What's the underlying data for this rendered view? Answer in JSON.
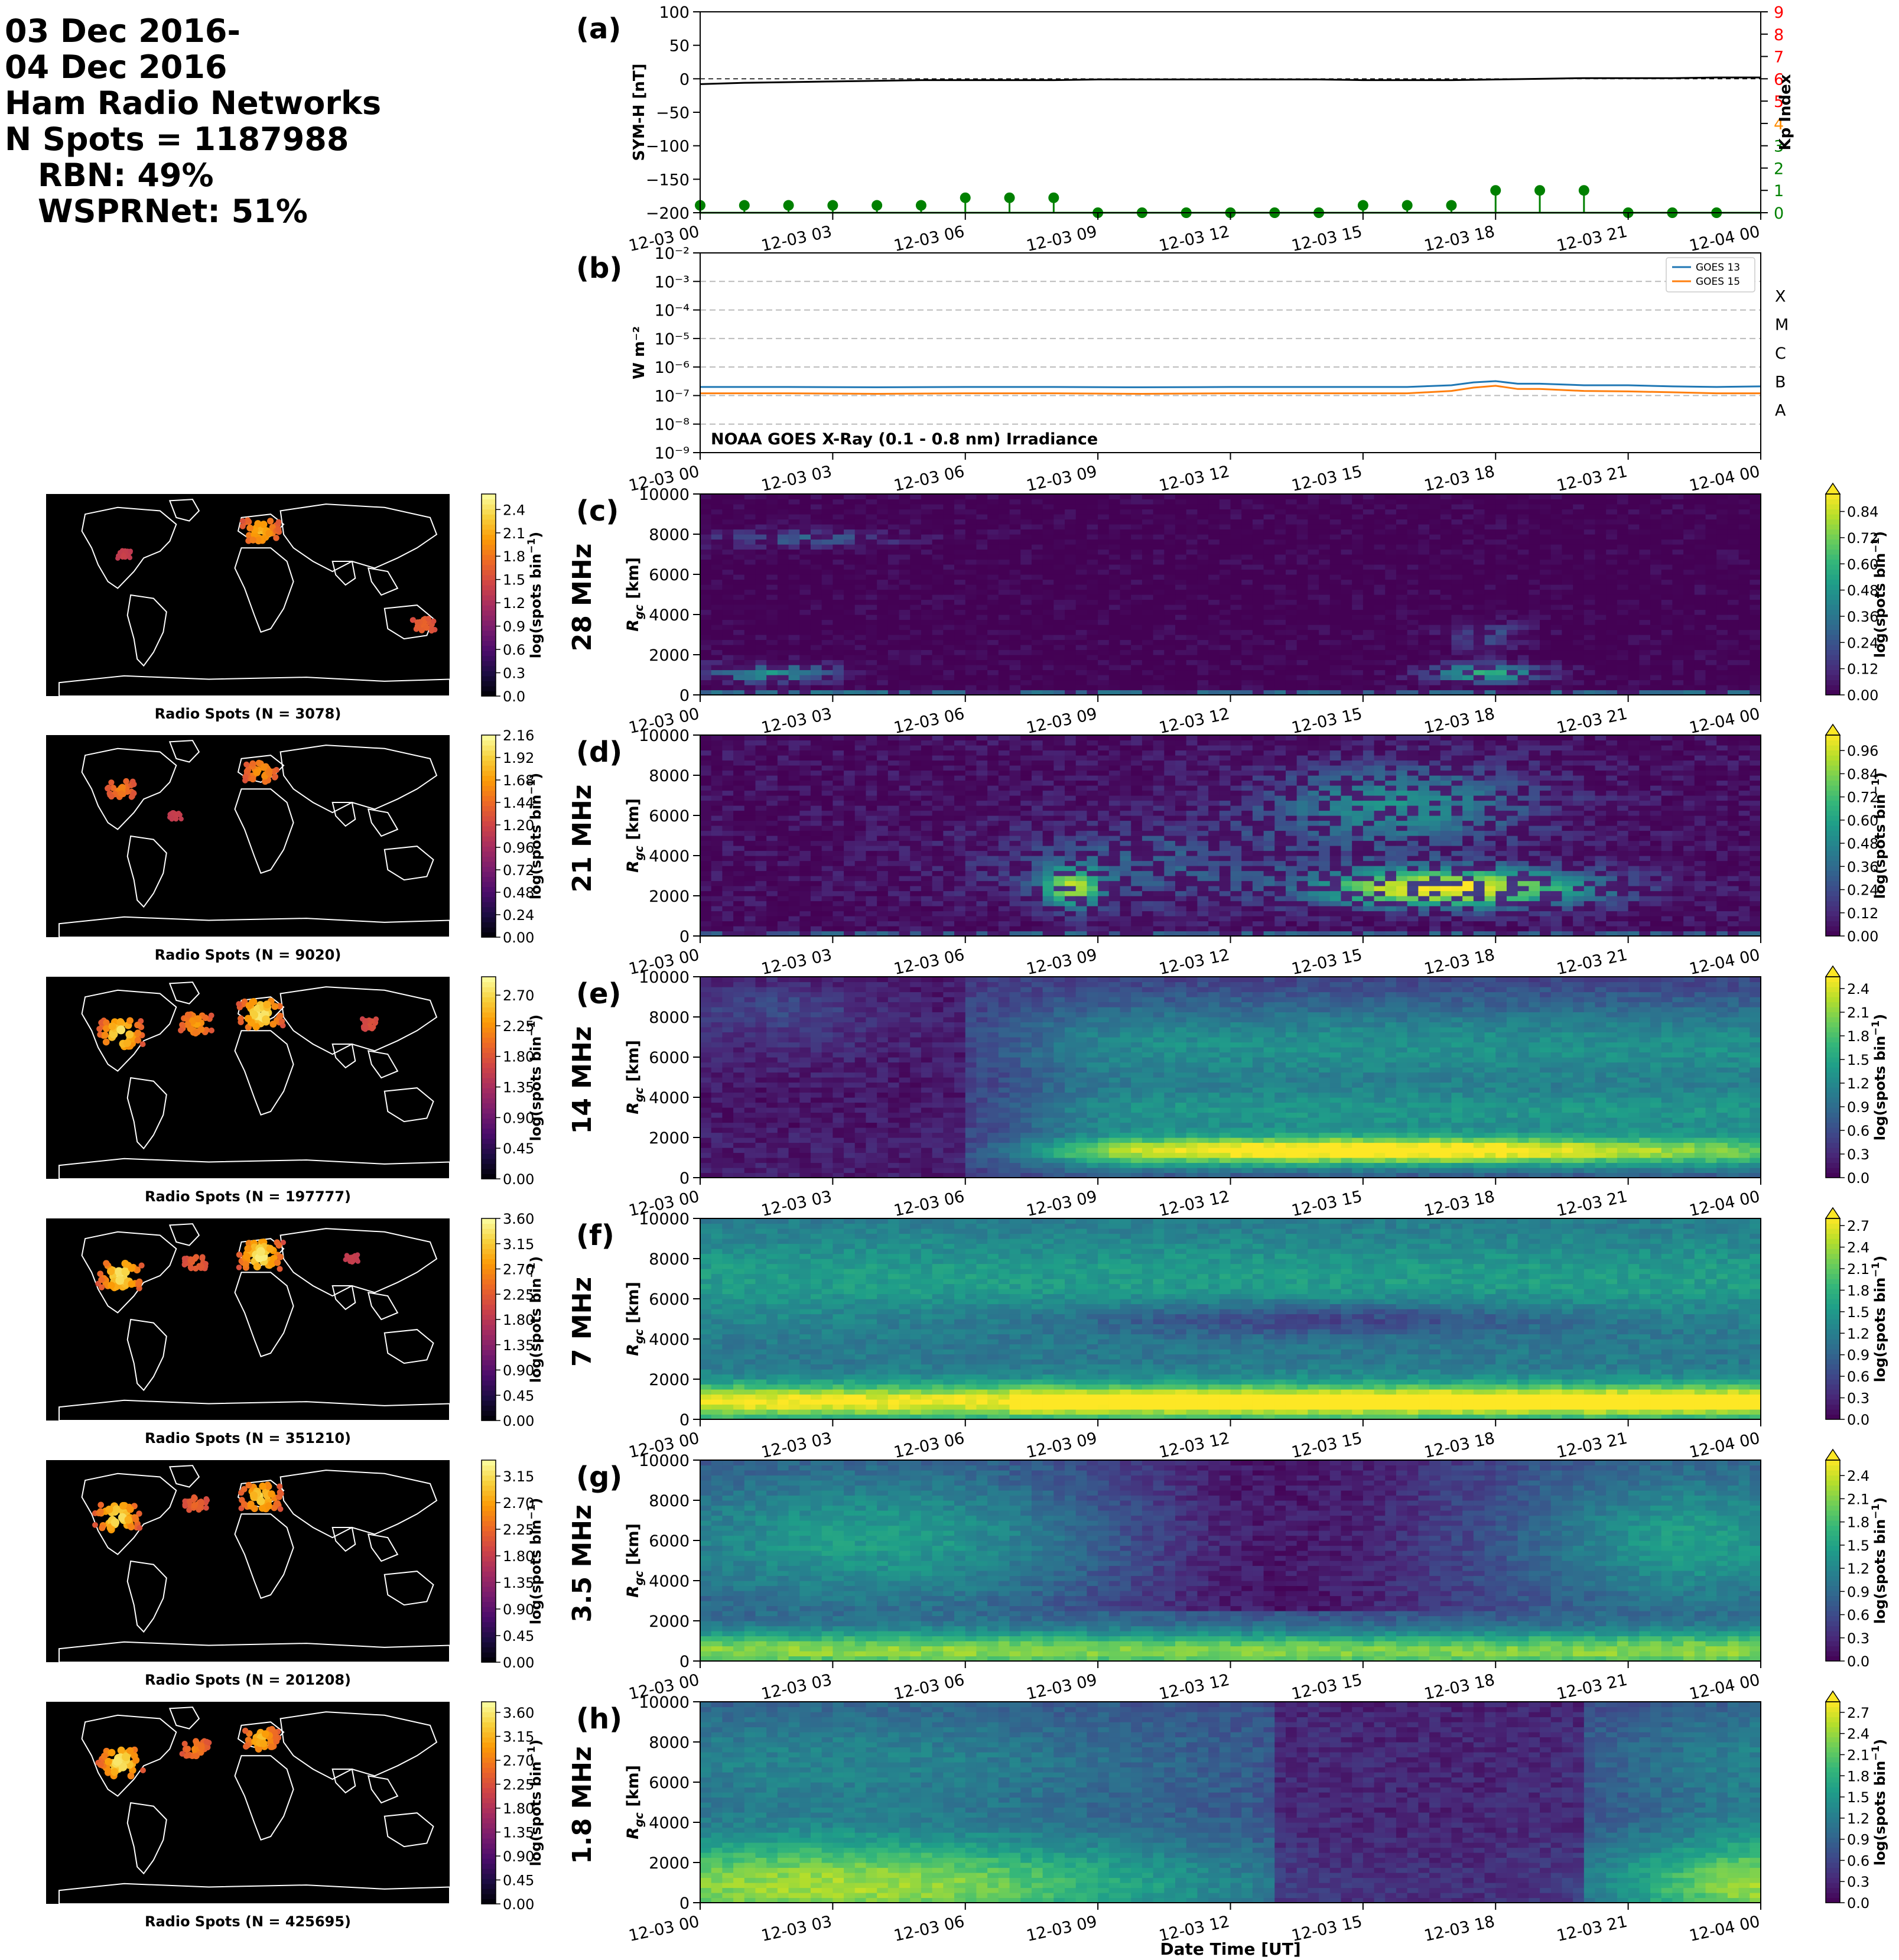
{
  "header": {
    "date_line1": "03 Dec 2016-",
    "date_line2": "04 Dec 2016",
    "networks_title": "Ham Radio Networks",
    "n_spots": "N Spots = 1187988",
    "rbn_share": "RBN: 49%",
    "wsprnet_share": "WSPRNet: 51%"
  },
  "time_axis": {
    "ticks": [
      "12-03 00",
      "12-03 03",
      "12-03 06",
      "12-03 09",
      "12-03 12",
      "12-03 15",
      "12-03 18",
      "12-03 21",
      "12-04 00"
    ],
    "xlabel": "Date Time [UT]"
  },
  "chart_data": [
    {
      "id": "a",
      "panel_label": "(a)",
      "type": "line",
      "ylabel": "SYM-H [nT]",
      "ylim": [
        -200,
        100
      ],
      "yticks": [
        "100",
        "50",
        "0",
        "−50",
        "−100",
        "−150",
        "−200"
      ],
      "reference_line": 0,
      "series": [
        {
          "color": "#000000",
          "x_hours": [
            0,
            1,
            2,
            3,
            4,
            5,
            6,
            7,
            8,
            9,
            10,
            11,
            12,
            13,
            14,
            15,
            16,
            17,
            18,
            19,
            20,
            21,
            22,
            23,
            24
          ],
          "values": [
            -8,
            -6,
            -5,
            -4,
            -3,
            -2,
            -2,
            -2,
            -2,
            -1,
            -1,
            -1,
            -1,
            -1,
            -1,
            -2,
            -2,
            -2,
            -1,
            0,
            1,
            1,
            1,
            2,
            2
          ]
        }
      ],
      "secondary_axis": {
        "ylabel": "Kp Index",
        "ylim": [
          0,
          9
        ],
        "yticks": [
          "0",
          "1",
          "2",
          "3",
          "4",
          "5",
          "6",
          "7",
          "8",
          "9"
        ],
        "tick_colors": [
          "#008000",
          "#008000",
          "#008000",
          "#008000",
          "#ff8c00",
          "#ff0000",
          "#ff0000",
          "#ff0000",
          "#ff0000",
          "#ff0000"
        ],
        "stem_series": {
          "color": "#008000",
          "x_hours": [
            0,
            1,
            2,
            3,
            4,
            5,
            6,
            7,
            8,
            9,
            10,
            11,
            12,
            13,
            14,
            15,
            16,
            17,
            18,
            19,
            20,
            21,
            22,
            23
          ],
          "values": [
            0.33,
            0.33,
            0.33,
            0.33,
            0.33,
            0.33,
            0.67,
            0.67,
            0.67,
            0,
            0,
            0,
            0,
            0,
            0,
            0.33,
            0.33,
            0.33,
            1,
            1,
            1,
            0,
            0,
            0
          ]
        }
      }
    },
    {
      "id": "b",
      "panel_label": "(b)",
      "type": "line",
      "yscale": "log",
      "ylabel": "W m⁻²",
      "ylim": [
        1e-09,
        0.01
      ],
      "yticks": [
        "10⁻⁹",
        "10⁻⁸",
        "10⁻⁷",
        "10⁻⁶",
        "10⁻⁵",
        "10⁻⁴",
        "10⁻³",
        "10⁻²"
      ],
      "flare_classes": [
        "A",
        "B",
        "C",
        "M",
        "X"
      ],
      "annotation": "NOAA GOES X-Ray (0.1 - 0.8 nm) Irradiance",
      "legend_position": "upper right",
      "series": [
        {
          "name": "GOES 13",
          "color": "#1f77b4",
          "x_hours": [
            0,
            2,
            4,
            6,
            8,
            10,
            12,
            14,
            15,
            16,
            17,
            17.5,
            18,
            18.5,
            19,
            20,
            21,
            22,
            23,
            24
          ],
          "values": [
            2e-07,
            2e-07,
            1.95e-07,
            2e-07,
            2e-07,
            1.95e-07,
            2e-07,
            2e-07,
            2e-07,
            2e-07,
            2.3e-07,
            2.9e-07,
            3.2e-07,
            2.6e-07,
            2.6e-07,
            2.3e-07,
            2.3e-07,
            2.1e-07,
            2e-07,
            2.1e-07
          ]
        },
        {
          "name": "GOES 15",
          "color": "#ff7f0e",
          "x_hours": [
            0,
            2,
            4,
            6,
            8,
            10,
            12,
            14,
            15,
            16,
            17,
            17.5,
            18,
            18.5,
            19,
            20,
            21,
            22,
            23,
            24
          ],
          "values": [
            1.2e-07,
            1.2e-07,
            1.15e-07,
            1.2e-07,
            1.2e-07,
            1.15e-07,
            1.2e-07,
            1.2e-07,
            1.2e-07,
            1.2e-07,
            1.45e-07,
            1.9e-07,
            2.2e-07,
            1.7e-07,
            1.7e-07,
            1.45e-07,
            1.4e-07,
            1.3e-07,
            1.2e-07,
            1.2e-07
          ]
        }
      ]
    }
  ],
  "bands": [
    {
      "id": "c",
      "panel_label": "(c)",
      "band": "28 MHz",
      "map_title": "Radio Spots (N = 3078)",
      "map_cbar_ticks": [
        "0.0",
        "0.3",
        "0.6",
        "0.9",
        "1.2",
        "1.5",
        "1.8",
        "2.1",
        "2.4"
      ],
      "map_cbar_max": 2.6,
      "heat_cbar_ticks": [
        "0.00",
        "0.12",
        "0.24",
        "0.36",
        "0.48",
        "0.60",
        "0.72",
        "0.84"
      ],
      "heat_cbar_max": 0.92
    },
    {
      "id": "d",
      "panel_label": "(d)",
      "band": "21 MHz",
      "map_title": "Radio Spots (N = 9020)",
      "map_cbar_ticks": [
        "0.00",
        "0.24",
        "0.48",
        "0.72",
        "0.96",
        "1.20",
        "1.44",
        "1.68",
        "1.92",
        "2.16"
      ],
      "map_cbar_max": 2.16,
      "heat_cbar_ticks": [
        "0.00",
        "0.12",
        "0.24",
        "0.36",
        "0.48",
        "0.60",
        "0.72",
        "0.84",
        "0.96"
      ],
      "heat_cbar_max": 1.04
    },
    {
      "id": "e",
      "panel_label": "(e)",
      "band": "14 MHz",
      "map_title": "Radio Spots (N = 197777)",
      "map_cbar_ticks": [
        "0.00",
        "0.45",
        "0.90",
        "1.35",
        "1.80",
        "2.25",
        "2.70"
      ],
      "map_cbar_max": 2.97,
      "heat_cbar_ticks": [
        "0.0",
        "0.3",
        "0.6",
        "0.9",
        "1.2",
        "1.5",
        "1.8",
        "2.1",
        "2.4"
      ],
      "heat_cbar_max": 2.55
    },
    {
      "id": "f",
      "panel_label": "(f)",
      "band": "7 MHz",
      "map_title": "Radio Spots (N = 351210)",
      "map_cbar_ticks": [
        "0.00",
        "0.45",
        "0.90",
        "1.35",
        "1.80",
        "2.25",
        "2.70",
        "3.15",
        "3.60"
      ],
      "map_cbar_max": 3.6,
      "heat_cbar_ticks": [
        "0.0",
        "0.3",
        "0.6",
        "0.9",
        "1.2",
        "1.5",
        "1.8",
        "2.1",
        "2.4",
        "2.7"
      ],
      "heat_cbar_max": 2.8
    },
    {
      "id": "g",
      "panel_label": "(g)",
      "band": "3.5 MHz",
      "map_title": "Radio Spots (N = 201208)",
      "map_cbar_ticks": [
        "0.00",
        "0.45",
        "0.90",
        "1.35",
        "1.80",
        "2.25",
        "2.70",
        "3.15"
      ],
      "map_cbar_max": 3.42,
      "heat_cbar_ticks": [
        "0.0",
        "0.3",
        "0.6",
        "0.9",
        "1.2",
        "1.5",
        "1.8",
        "2.1",
        "2.4"
      ],
      "heat_cbar_max": 2.6
    },
    {
      "id": "h",
      "panel_label": "(h)",
      "band": "1.8 MHz",
      "map_title": "Radio Spots (N = 425695)",
      "map_cbar_ticks": [
        "0.00",
        "0.45",
        "0.90",
        "1.35",
        "1.80",
        "2.25",
        "2.70",
        "3.15",
        "3.60"
      ],
      "map_cbar_max": 3.8,
      "heat_cbar_ticks": [
        "0.0",
        "0.3",
        "0.6",
        "0.9",
        "1.2",
        "1.5",
        "1.8",
        "2.1",
        "2.4",
        "2.7"
      ],
      "heat_cbar_max": 2.85
    }
  ],
  "heatmap_axis": {
    "ylabel_main": "R",
    "ylabel_sub": "gc",
    "ylabel_unit": " [km]",
    "yticks": [
      "0",
      "2000",
      "4000",
      "6000",
      "8000",
      "10000"
    ],
    "ylim": [
      0,
      10000
    ]
  },
  "cbar_label_main": "log(spots bin",
  "cbar_label_sup": "−1",
  "cbar_label_end": ")",
  "colormaps": {
    "viridis": [
      "#440154",
      "#482878",
      "#3e4989",
      "#31688e",
      "#26828e",
      "#1f9e89",
      "#35b779",
      "#6ece58",
      "#b5de2b",
      "#fde725"
    ],
    "inferno": [
      "#000004",
      "#1b0c41",
      "#4a0c6b",
      "#781c6d",
      "#a52c60",
      "#cf4446",
      "#ed6925",
      "#fb9b06",
      "#f7d13d",
      "#fcffa4"
    ]
  }
}
